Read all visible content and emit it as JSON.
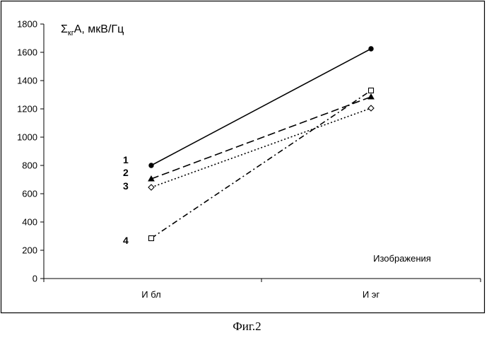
{
  "chart_data": {
    "type": "line",
    "title": "",
    "ylabel_parts": [
      "Σ",
      "кг",
      "А, мкВ/Гц"
    ],
    "xlabel": "",
    "annotation": "Изображения",
    "categories": [
      "И бл",
      "И эг"
    ],
    "ylim": [
      0,
      1800
    ],
    "yticks": [
      0,
      200,
      400,
      600,
      800,
      1000,
      1200,
      1400,
      1600,
      1800
    ],
    "grid": false,
    "series": [
      {
        "label": "1",
        "values": [
          800,
          1625
        ],
        "marker": "filled-circle",
        "dash": "solid"
      },
      {
        "label": "2",
        "values": [
          705,
          1285
        ],
        "marker": "filled-triangle",
        "dash": "dashed"
      },
      {
        "label": "3",
        "values": [
          645,
          1205
        ],
        "marker": "open-diamond",
        "dash": "dotted"
      },
      {
        "label": "4",
        "values": [
          285,
          1330
        ],
        "marker": "open-square",
        "dash": "dash-dot"
      }
    ]
  },
  "caption": "Фиг.2"
}
